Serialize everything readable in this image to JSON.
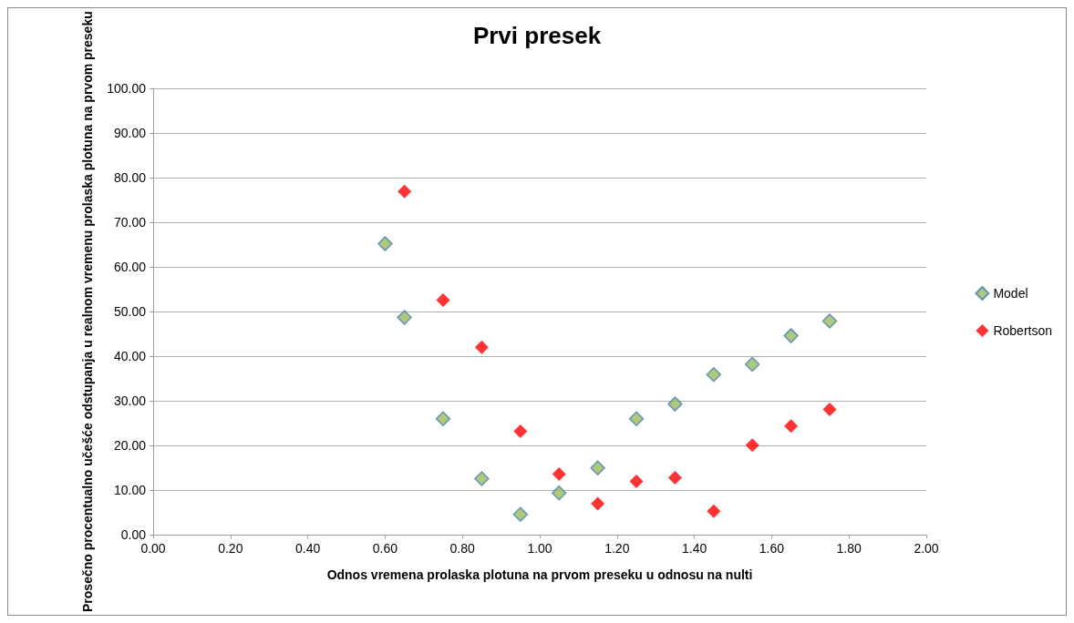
{
  "chart_data": {
    "type": "scatter",
    "title": "Prvi presek",
    "xlabel": "Odnos vremena prolaska plotuna na prvom preseku u odnosu na nulti",
    "ylabel": "Prosečno procentualno učešće odstupanja u realnom vremenu prolaska plotuna na prvom preseku",
    "series": [
      {
        "name": "Model",
        "color": "#9bbb59",
        "x": [
          0.6,
          0.65,
          0.75,
          0.85,
          0.95,
          1.05,
          1.15,
          1.25,
          1.35,
          1.45,
          1.55,
          1.65,
          1.75
        ],
        "values": [
          65.2,
          48.7,
          26.0,
          12.6,
          4.6,
          9.4,
          15.0,
          26.0,
          29.3,
          35.9,
          38.2,
          44.6,
          47.9
        ]
      },
      {
        "name": "Robertson",
        "color": "#ff0000",
        "x": [
          0.65,
          0.75,
          0.85,
          0.95,
          1.05,
          1.15,
          1.25,
          1.35,
          1.45,
          1.55,
          1.65,
          1.75
        ],
        "values": [
          76.9,
          52.6,
          42.0,
          23.2,
          13.6,
          7.0,
          12.0,
          12.8,
          5.3,
          20.1,
          24.4,
          28.1
        ]
      }
    ],
    "xlim": [
      0,
      2
    ],
    "xticks": [
      {
        "value": 0,
        "label": "0.00"
      },
      {
        "value": 0.2,
        "label": "0.20"
      },
      {
        "value": 0.4,
        "label": "0.40"
      },
      {
        "value": 0.6,
        "label": "0.60"
      },
      {
        "value": 0.8,
        "label": "0.80"
      },
      {
        "value": 1,
        "label": "1.00"
      },
      {
        "value": 1.2,
        "label": "1.20"
      },
      {
        "value": 1.4,
        "label": "1.40"
      },
      {
        "value": 1.6,
        "label": "1.60"
      },
      {
        "value": 1.8,
        "label": "1.80"
      },
      {
        "value": 2,
        "label": "2.00"
      }
    ],
    "ylim": [
      0,
      100
    ],
    "yticks": [
      {
        "value": 0,
        "label": "0.00"
      },
      {
        "value": 10,
        "label": "10.00"
      },
      {
        "value": 20,
        "label": "20.00"
      },
      {
        "value": 30,
        "label": "30.00"
      },
      {
        "value": 40,
        "label": "40.00"
      },
      {
        "value": 50,
        "label": "50.00"
      },
      {
        "value": 60,
        "label": "60.00"
      },
      {
        "value": 70,
        "label": "70.00"
      },
      {
        "value": 80,
        "label": "80.00"
      },
      {
        "value": 90,
        "label": "90.00"
      },
      {
        "value": 100,
        "label": "100.00"
      }
    ],
    "grid": "y",
    "legend": "right",
    "marker": "diamond"
  }
}
